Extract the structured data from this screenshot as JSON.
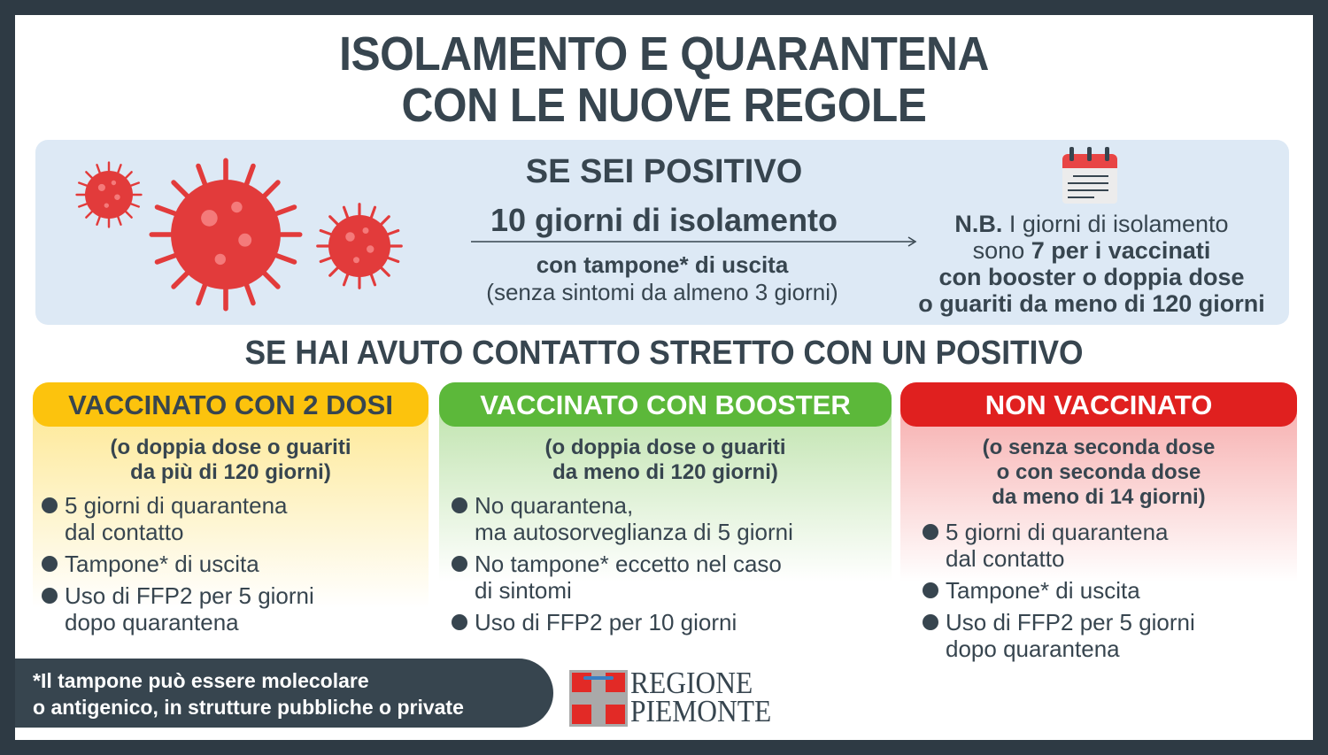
{
  "title": [
    "ISOLAMENTO E QUARANTENA",
    "CON LE NUOVE REGOLE"
  ],
  "positive": {
    "heading": "SE SEI POSITIVO",
    "main": "10 giorni di isolamento",
    "test": "con tampone* di uscita",
    "condition": "(senza sintomi da almeno 3 giorni)",
    "nb": {
      "prefix": "N.B.",
      "l1": " I giorni di isolamento",
      "l2a": "sono ",
      "l2b": "7 per i vaccinati",
      "l3": "con booster o doppia dose",
      "l4": "o guariti da meno di 120 giorni"
    }
  },
  "contact_heading": "SE HAI AVUTO CONTATTO STRETTO CON UN POSITIVO",
  "columns": [
    {
      "title": "VACCINATO CON 2 DOSI",
      "subtitle": [
        "(o doppia dose o guariti",
        "da più di 120 giorni)"
      ],
      "color": "#fcc30d",
      "items": [
        [
          "5 giorni di quarantena",
          "dal contatto"
        ],
        [
          "Tampone* di uscita"
        ],
        [
          "Uso di FFP2 per 5 giorni",
          "dopo quarantena"
        ]
      ]
    },
    {
      "title": "VACCINATO CON BOOSTER",
      "subtitle": [
        "(o doppia dose o guariti",
        "da meno di 120 giorni)"
      ],
      "color": "#5cb83a",
      "items": [
        [
          "No quarantena,",
          "ma autosorveglianza di 5 giorni"
        ],
        [
          "No tampone* eccetto nel caso",
          "di sintomi"
        ],
        [
          "Uso di FFP2 per 10 giorni"
        ]
      ]
    },
    {
      "title": "NON VACCINATO",
      "subtitle": [
        "(o senza seconda dose",
        "o con seconda dose",
        "da meno di 14 giorni)"
      ],
      "color": "#e0201f",
      "items": [
        [
          "5 giorni di quarantena",
          "dal contatto"
        ],
        [
          "Tampone* di uscita"
        ],
        [
          "Uso di FFP2 per 5 giorni",
          "dopo quarantena"
        ]
      ]
    }
  ],
  "footnote": [
    "*Il tampone può essere molecolare",
    "o antigenico, in strutture pubbliche o private"
  ],
  "logo": {
    "line1": "REGIONE",
    "line2": "PIEMONTE"
  },
  "icons": [
    "virus-icon",
    "calendar-icon"
  ]
}
